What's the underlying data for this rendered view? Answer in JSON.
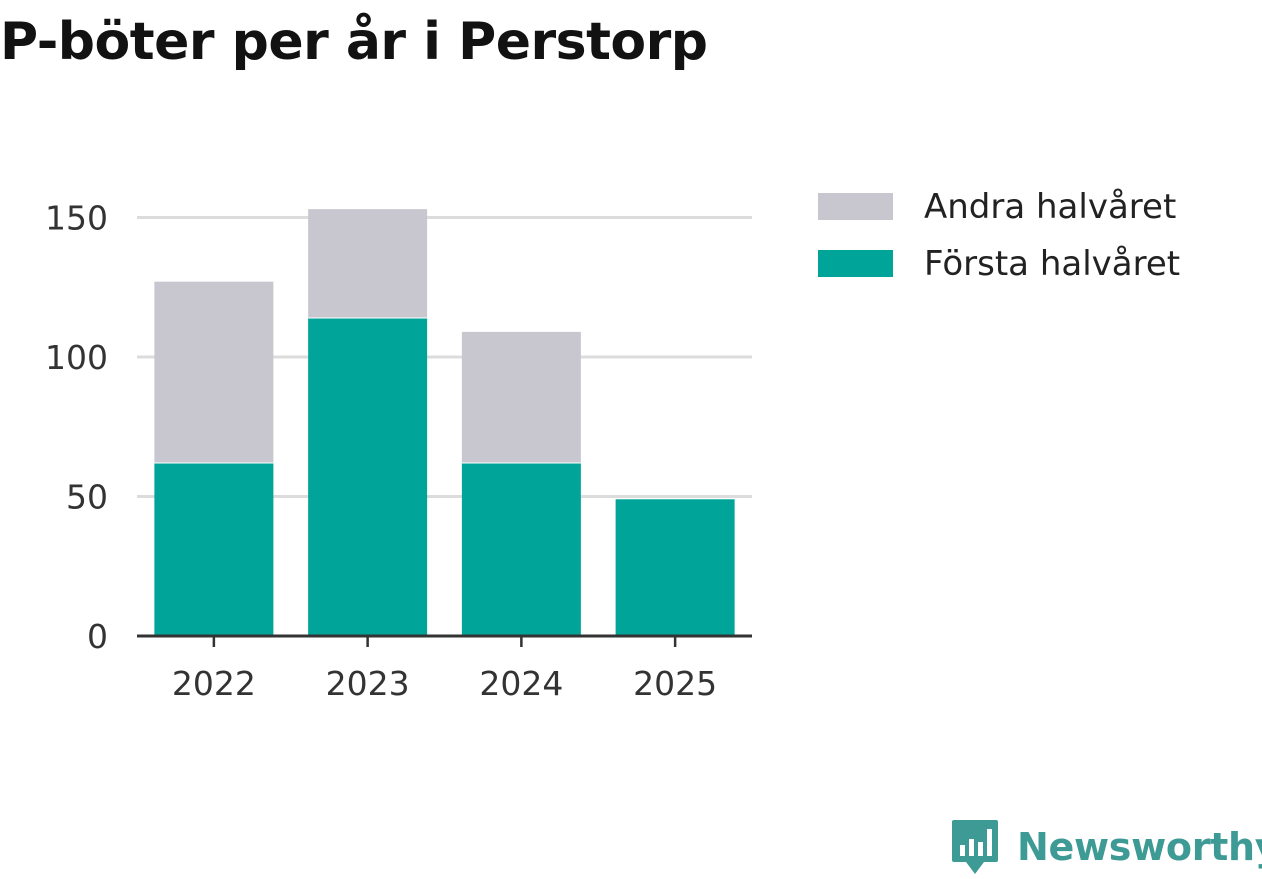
{
  "title": "P-böter per år i Perstorp",
  "chart_data": {
    "type": "bar",
    "stacked": true,
    "categories": [
      "2022",
      "2023",
      "2024",
      "2025"
    ],
    "series": [
      {
        "name": "Första halvåret",
        "values": [
          62,
          114,
          62,
          49
        ],
        "color": "#00a499"
      },
      {
        "name": "Andra halvåret",
        "values": [
          65,
          39,
          47,
          0
        ],
        "color": "#c8c7d0"
      }
    ],
    "yticks": [
      0,
      50,
      100,
      150
    ],
    "ylim": [
      0,
      153
    ],
    "xlabel": "",
    "ylabel": "",
    "grid": true,
    "legend_placement": "right"
  },
  "legend": [
    {
      "label": "Andra halvåret",
      "color": "#c8c7d0"
    },
    {
      "label": "Första halvåret",
      "color": "#00a499"
    }
  ],
  "brand": {
    "name": "Newsworthy",
    "icon": "newsworthy-bar-chart-icon",
    "color": "#3e9a95"
  }
}
